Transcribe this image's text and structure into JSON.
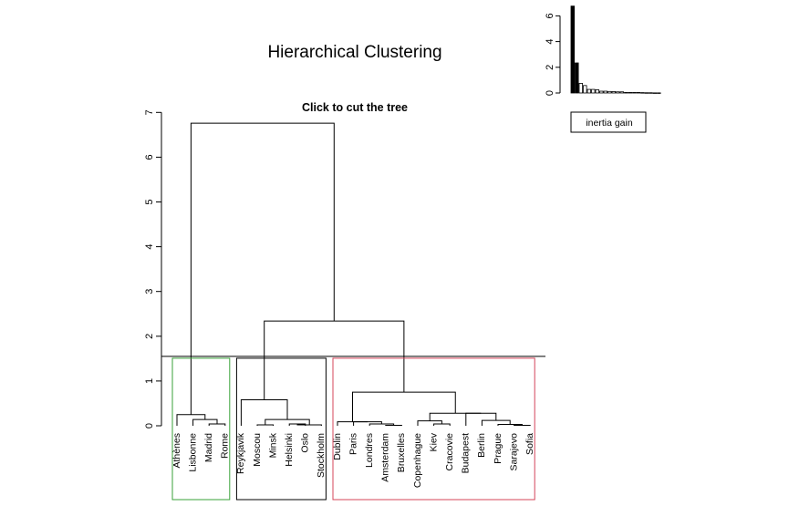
{
  "chart_data": [
    {
      "type": "dendrogram",
      "title": "Hierarchical Clustering",
      "subtitle": "Click to cut the tree",
      "ylim": [
        0,
        7
      ],
      "yticks": [
        0,
        1,
        2,
        3,
        4,
        5,
        6,
        7
      ],
      "cut_height": 1.55,
      "leaves": [
        "Athènes",
        "Lisbonne",
        "Madrid",
        "Rome",
        "Reykjavik",
        "Moscou",
        "Minsk",
        "Helsinki",
        "Oslo",
        "Stockholm",
        "Dublin",
        "Paris",
        "Londres",
        "Amsterdam",
        "Bruxelles",
        "Copenhague",
        "Kiev",
        "Cracovie",
        "Budapest",
        "Berlin",
        "Prague",
        "Sarajevo",
        "Sofia"
      ],
      "merges": [
        {
          "id": "m1",
          "left": "Madrid",
          "right": "Rome",
          "height": 0.04
        },
        {
          "id": "m2",
          "left": "Lisbonne",
          "right": "m1",
          "height": 0.14
        },
        {
          "id": "m3",
          "left": "Athènes",
          "right": "m2",
          "height": 0.25
        },
        {
          "id": "m4",
          "left": "Helsinki",
          "right": "Oslo",
          "height": 0.04
        },
        {
          "id": "m5",
          "left": "m4",
          "right": "Stockholm",
          "height": 0.02
        },
        {
          "id": "m6",
          "left": "Moscou",
          "right": "Minsk",
          "height": 0.02
        },
        {
          "id": "m7",
          "left": "m6",
          "right": "m5",
          "height": 0.14
        },
        {
          "id": "m8",
          "left": "Reykjavik",
          "right": "m7",
          "height": 0.58
        },
        {
          "id": "m9",
          "left": "Amsterdam",
          "right": "Bruxelles",
          "height": 0.01
        },
        {
          "id": "m10",
          "left": "Londres",
          "right": "m9",
          "height": 0.04
        },
        {
          "id": "m11",
          "left": "Paris",
          "right": "m10",
          "height": 0.09
        },
        {
          "id": "m12",
          "left": "Dublin",
          "right": "m11",
          "height": 0.09
        },
        {
          "id": "m13",
          "left": "Kiev",
          "right": "Cracovie",
          "height": 0.04
        },
        {
          "id": "m14",
          "left": "Copenhague",
          "right": "m13",
          "height": 0.11
        },
        {
          "id": "m15",
          "left": "Sarajevo",
          "right": "Sofia",
          "height": 0.01
        },
        {
          "id": "m16",
          "left": "Prague",
          "right": "m15",
          "height": 0.03
        },
        {
          "id": "m17",
          "left": "Berlin",
          "right": "m16",
          "height": 0.12
        },
        {
          "id": "m18",
          "left": "Budapest",
          "right": "m17",
          "height": 0.28
        },
        {
          "id": "m19",
          "left": "m14",
          "right": "m18",
          "height": 0.28
        },
        {
          "id": "m20",
          "left": "m12",
          "right": "m19",
          "height": 0.75
        },
        {
          "id": "m21",
          "left": "m8",
          "right": "m20",
          "height": 2.34
        },
        {
          "id": "m22",
          "left": "m3",
          "right": "m21",
          "height": 6.76
        }
      ],
      "clusters": [
        {
          "first": "Athènes",
          "last": "Rome",
          "color": "#3aa23a"
        },
        {
          "first": "Reykjavik",
          "last": "Stockholm",
          "color": "#000000"
        },
        {
          "first": "Dublin",
          "last": "Sofia",
          "color": "#d4455a"
        }
      ]
    },
    {
      "type": "bar",
      "ylim": [
        0,
        6.8
      ],
      "yticks": [
        0,
        2,
        4,
        6
      ],
      "values": [
        6.76,
        2.34,
        0.75,
        0.58,
        0.28,
        0.28,
        0.25,
        0.14,
        0.14,
        0.12,
        0.11,
        0.09,
        0.09,
        0.04,
        0.04,
        0.04,
        0.04,
        0.03,
        0.02,
        0.02,
        0.01,
        0.01
      ],
      "highlight_count": 2,
      "legend": "inertia gain"
    }
  ]
}
